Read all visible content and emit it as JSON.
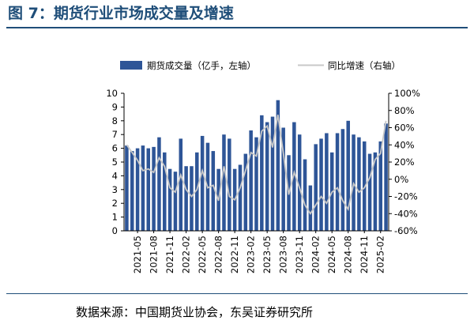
{
  "header": {
    "title": "图 7：期货行业市场成交量及增速"
  },
  "footer": {
    "source": "数据来源：中国期货业协会，东吴证券研究所"
  },
  "colors": {
    "bar": "#2e5597",
    "line": "#c8c8c8",
    "title": "#1f4e79"
  },
  "chart_data": {
    "type": "bar",
    "legend_position": "top",
    "grid": false,
    "categories": [
      "2021-03",
      "2021-04",
      "2021-05",
      "2021-06",
      "2021-07",
      "2021-08",
      "2021-09",
      "2021-10",
      "2021-11",
      "2021-12",
      "2022-01",
      "2022-02",
      "2022-03",
      "2022-04",
      "2022-05",
      "2022-06",
      "2022-07",
      "2022-08",
      "2022-09",
      "2022-10",
      "2022-11",
      "2022-12",
      "2023-01",
      "2023-02",
      "2023-03",
      "2023-04",
      "2023-05",
      "2023-06",
      "2023-07",
      "2023-08",
      "2023-09",
      "2023-10",
      "2023-11",
      "2023-12",
      "2024-01",
      "2024-02",
      "2024-03",
      "2024-04",
      "2024-05",
      "2024-06",
      "2024-07",
      "2024-08",
      "2024-09",
      "2024-10",
      "2024-11",
      "2024-12",
      "2025-01",
      "2025-02",
      "2025-03"
    ],
    "x_tick_labels": [
      "2021-05",
      "2021-08",
      "2021-11",
      "2022-02",
      "2022-05",
      "2022-08",
      "2022-11",
      "2023-02",
      "2023-05",
      "2023-08",
      "2023-11",
      "2024-02",
      "2024-05",
      "2024-08",
      "2024-11",
      "2025-02"
    ],
    "series": [
      {
        "name": "期货成交量（亿手，左轴）",
        "axis": "left",
        "type": "bar",
        "values": [
          6.2,
          5.8,
          6.0,
          6.2,
          6.0,
          6.1,
          6.8,
          5.7,
          4.5,
          4.3,
          6.7,
          4.7,
          4.7,
          5.7,
          6.9,
          6.4,
          5.8,
          4.5,
          7.0,
          6.7,
          4.5,
          4.8,
          5.6,
          7.3,
          6.8,
          8.4,
          7.9,
          8.3,
          9.5,
          7.5,
          5.5,
          7.9,
          7.0,
          5.2,
          3.3,
          6.3,
          6.7,
          7.1,
          5.7,
          7.1,
          7.4,
          8.0,
          7.0,
          6.8,
          6.5,
          5.6,
          5.7,
          6.5,
          7.8
        ]
      },
      {
        "name": "同比增速（右轴）",
        "axis": "right",
        "type": "line",
        "values": [
          40,
          31,
          22,
          10,
          12,
          8,
          25,
          15,
          -10,
          -15,
          5,
          -12,
          -20,
          -12,
          10,
          -10,
          -7,
          -25,
          15,
          -20,
          -24,
          -10,
          10,
          31,
          27,
          56,
          62,
          37,
          75,
          30,
          -18,
          8,
          -10,
          -30,
          -40,
          -30,
          -20,
          -28,
          -15,
          -10,
          -25,
          -35,
          -5,
          -15,
          -10,
          2,
          23,
          30,
          68
        ]
      }
    ],
    "y_left": {
      "min": 0,
      "max": 10,
      "ticks": [
        "0",
        "1",
        "2",
        "3",
        "4",
        "5",
        "6",
        "7",
        "8",
        "9",
        "10"
      ]
    },
    "y_right": {
      "min": -60,
      "max": 100,
      "ticks": [
        "-60%",
        "-40%",
        "-20%",
        "0%",
        "20%",
        "40%",
        "60%",
        "80%",
        "100%"
      ]
    }
  }
}
